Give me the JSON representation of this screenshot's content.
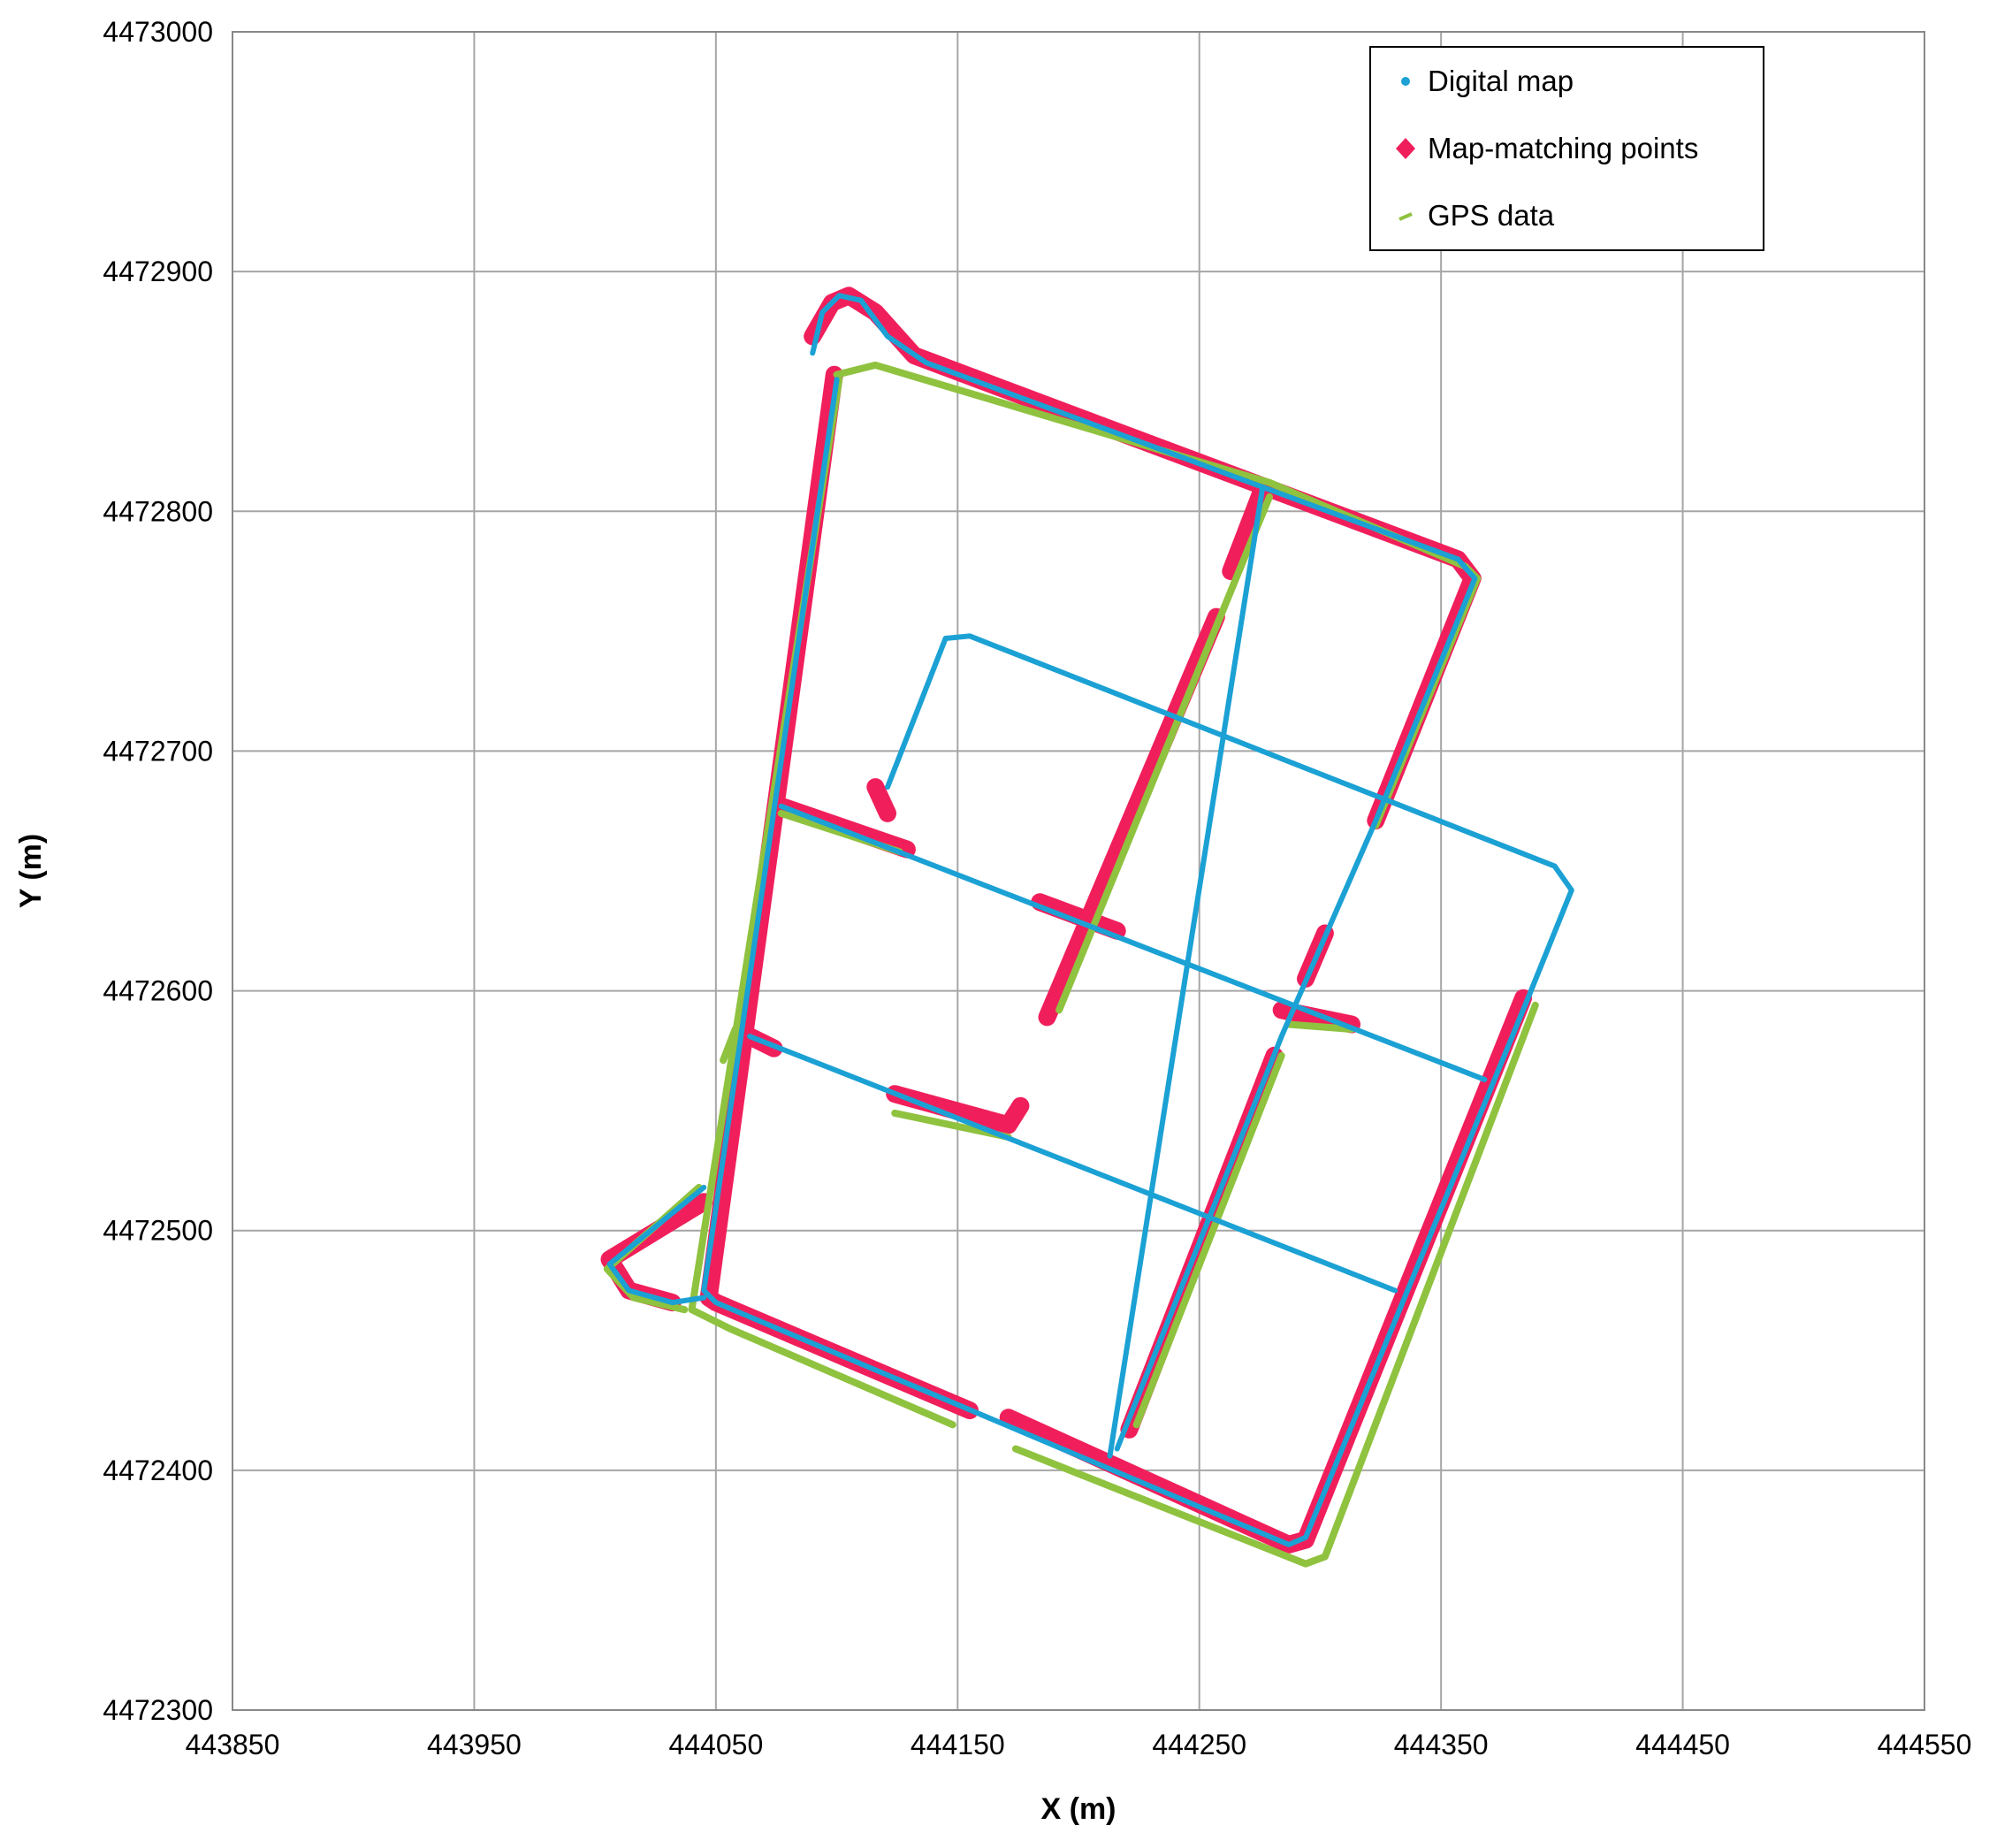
{
  "chart_data": {
    "type": "scatter",
    "x_label": "X (m)",
    "y_label": "Y (m)",
    "xlim": [
      443850,
      444550
    ],
    "ylim": [
      4472300,
      4473000
    ],
    "xticks": [
      443850,
      443950,
      444050,
      444150,
      444250,
      444350,
      444450,
      444550
    ],
    "yticks": [
      4472300,
      4472400,
      4472500,
      4472600,
      4472700,
      4472800,
      4472900,
      4473000
    ],
    "grid": true,
    "legend": "upper right",
    "series": [
      {
        "name": "Digital map",
        "color": "#1ba1d4",
        "x": [
          444090,
          444094,
          444101,
          444110,
          444121,
          444137,
          444357,
          444364,
          444323,
          444284,
          444216,
          null,
          444100,
          444045,
          444050,
          444287,
          444294,
          444386,
          444404,
          444397,
          444155,
          444145,
          444121,
          null,
          444276,
          444213,
          null,
          444077,
          444368,
          null,
          444064,
          444331,
          null,
          444045,
          444006,
          444014,
          444032,
          444045
        ],
        "values": [
          4472866,
          4472883,
          4472890,
          4472888,
          4472873,
          4472862,
          4472780,
          4472772,
          4472671,
          4472581,
          4472409,
          null,
          4472855,
          4472475,
          4472470,
          4472369,
          4472372,
          4472597,
          4472642,
          4472652,
          4472748,
          4472747,
          4472685,
          null,
          4472809,
          4472406,
          null,
          4472677,
          4472563,
          null,
          4472581,
          4472475,
          null,
          4472518,
          4472486,
          4472475,
          4472470,
          4472472
        ]
      },
      {
        "name": "Map-matching points",
        "color": "#f01f5b",
        "x": [
          444090,
          444098,
          444105,
          444116,
          444132,
          444357,
          444363,
          444323,
          null,
          444099,
          444047,
          444050,
          444155,
          null,
          444171,
          444287,
          444294,
          444384,
          null,
          444045,
          444006,
          444014,
          444032,
          null,
          444276,
          444263,
          null,
          444257,
          444187,
          null,
          444281,
          444221,
          null,
          444077,
          444129,
          null,
          444184,
          444216,
          null,
          444284,
          444313,
          null,
          444064,
          444074,
          null,
          444124,
          444171,
          444176,
          null,
          444116,
          444121,
          null,
          444302,
          444294
        ],
        "values": [
          4472873,
          4472887,
          4472890,
          4472883,
          4472865,
          4472780,
          4472772,
          4472671,
          null,
          4472857,
          4472472,
          4472470,
          4472425,
          null,
          4472422,
          4472369,
          4472371,
          4472597,
          null,
          4472512,
          4472488,
          4472475,
          4472470,
          null,
          4472809,
          4472775,
          null,
          4472756,
          4472589,
          null,
          4472573,
          4472417,
          null,
          4472677,
          4472659,
          null,
          4472637,
          4472625,
          null,
          4472592,
          4472586,
          null,
          4472581,
          4472576,
          null,
          4472557,
          4472544,
          4472552,
          null,
          4472685,
          4472674,
          null,
          4472624,
          4472605
        ]
      },
      {
        "name": "GPS data",
        "color": "#8fc23f",
        "x": [
          444100,
          444116,
          444279,
          444360,
          444365,
          444323,
          null,
          444101,
          444040,
          444056,
          444148,
          null,
          444174,
          444294,
          444302,
          444389,
          null,
          444043,
          444005,
          444016,
          444037,
          null,
          444279,
          444192,
          null,
          444284,
          444224,
          null,
          444077,
          444126,
          null,
          444124,
          444171,
          null,
          444287,
          444313,
          null,
          444053,
          444058
        ],
        "values": [
          4472857,
          4472861,
          4472812,
          4472777,
          4472772,
          4472669,
          null,
          4472855,
          4472467,
          4472459,
          4472419,
          null,
          4472409,
          4472361,
          4472364,
          4472594,
          null,
          4472518,
          4472484,
          4472472,
          4472467,
          null,
          4472806,
          4472592,
          null,
          4472573,
          4472419,
          null,
          4472674,
          4472658,
          null,
          4472549,
          4472539,
          null,
          4472586,
          4472584,
          null,
          4472571,
          4472584
        ]
      }
    ]
  }
}
